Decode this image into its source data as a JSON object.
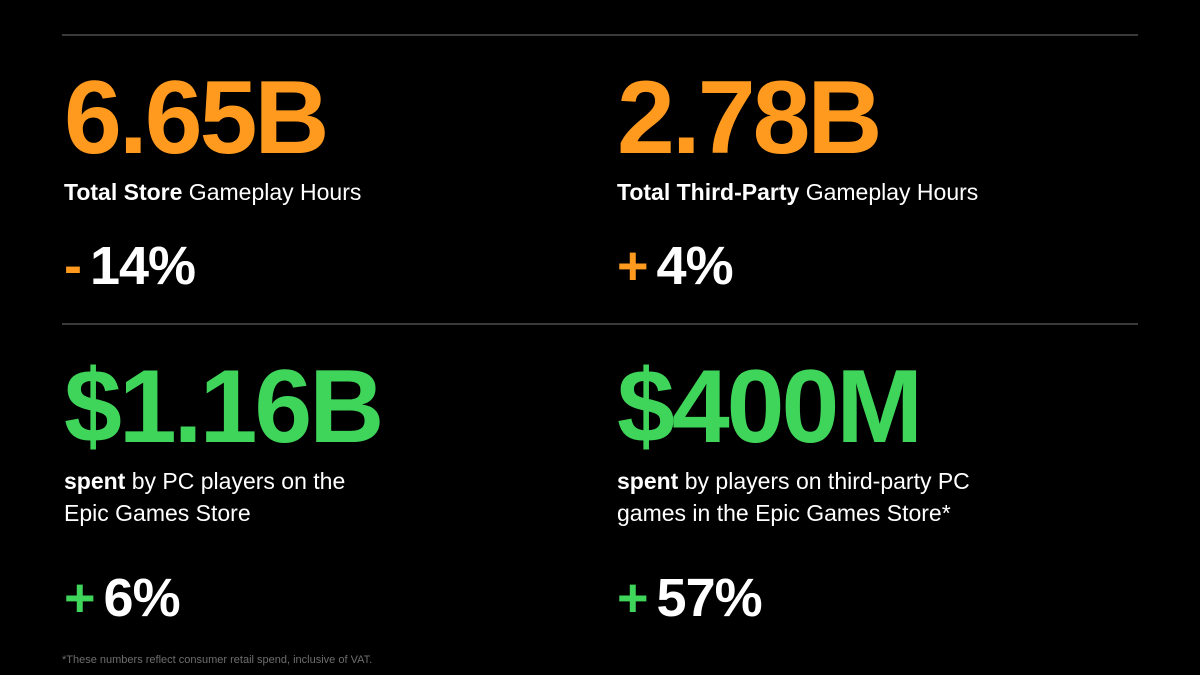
{
  "colors": {
    "background": "#000000",
    "accent_orange": "#ff9a1f",
    "accent_green": "#3fd45a",
    "text": "#ffffff",
    "divider": "#3a3a3a",
    "footnote": "#6e6e6e"
  },
  "stats": [
    {
      "value": "6.65B",
      "label_bold": "Total Store",
      "label_rest": " Gameplay Hours",
      "change_sign": "-",
      "change_value": "14%"
    },
    {
      "value": "2.78B",
      "label_bold": "Total Third-Party",
      "label_rest": " Gameplay Hours",
      "change_sign": "+",
      "change_value": "4%"
    },
    {
      "value": "$1.16B",
      "label_bold": "spent",
      "label_rest": " by PC players on the",
      "label_line2": "Epic Games Store",
      "change_sign": "+",
      "change_value": "6%"
    },
    {
      "value": "$400M",
      "label_bold": "spent",
      "label_rest": " by players on third-party PC",
      "label_line2": "games in the Epic Games Store*",
      "change_sign": "+",
      "change_value": "57%"
    }
  ],
  "footnote": "*These numbers reflect consumer retail spend, inclusive of VAT."
}
